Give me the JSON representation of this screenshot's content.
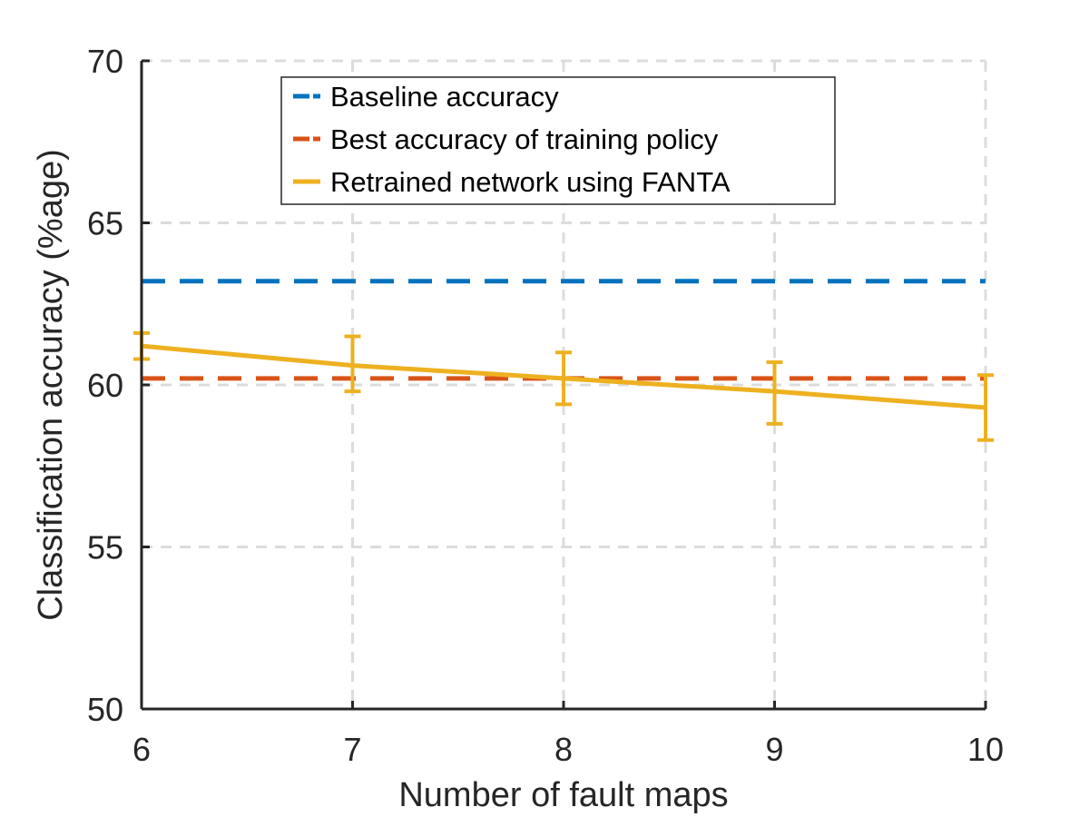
{
  "chart_data": {
    "type": "line",
    "xlabel": "Number of fault maps",
    "ylabel": "Classification accuracy (%age)",
    "xlim": [
      6,
      10
    ],
    "ylim": [
      50,
      70
    ],
    "xticks": [
      "6",
      "7",
      "8",
      "9",
      "10"
    ],
    "yticks": [
      "50",
      "55",
      "60",
      "65",
      "70"
    ],
    "grid": true,
    "legend_position": "top-center",
    "x": [
      6,
      7,
      8,
      9,
      10
    ],
    "series": [
      {
        "name": "Baseline accuracy",
        "style": "dashed",
        "color": "#0072BD",
        "values": [
          63.2,
          63.2,
          63.2,
          63.2,
          63.2
        ]
      },
      {
        "name": "Best accuracy of training policy",
        "style": "dashed",
        "color": "#D95319",
        "values": [
          60.2,
          60.2,
          60.2,
          60.2,
          60.2
        ]
      },
      {
        "name": "Retrained network using FANTA",
        "style": "solid",
        "color": "#EDB120",
        "values": [
          61.2,
          60.6,
          60.2,
          59.8,
          59.3
        ],
        "error_low": [
          60.8,
          59.8,
          59.4,
          58.8,
          58.3
        ],
        "error_high": [
          61.6,
          61.5,
          61.0,
          60.7,
          60.3
        ]
      }
    ]
  }
}
